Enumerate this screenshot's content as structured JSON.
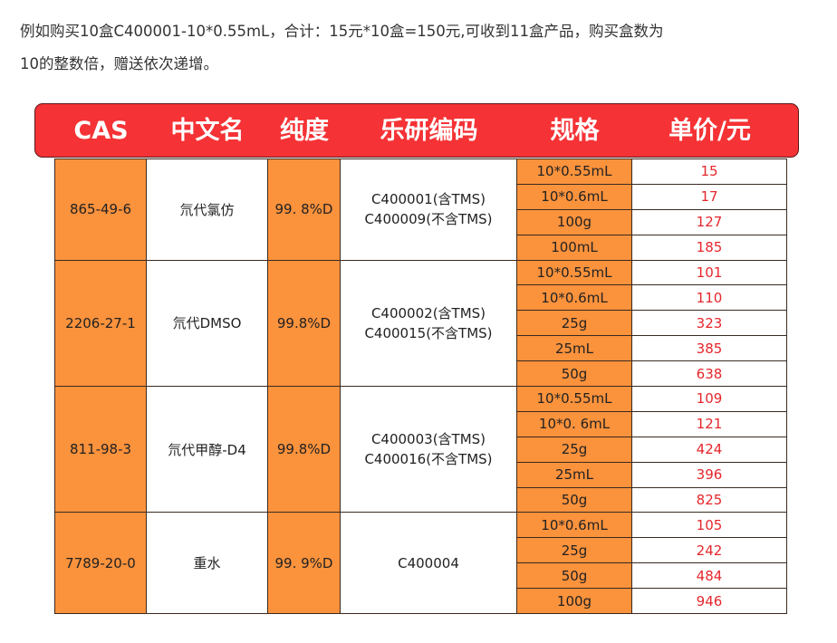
{
  "intro": {
    "line1": "例如购买10盒C400001-10*0.55mL，合计：15元*10盒=150元,可收到11盒产品，购买盒数为",
    "line2": "10的整数倍，赠送依次递增。"
  },
  "colors": {
    "header_bg": "#f53235",
    "orange": "#fb923c",
    "price": "#e5262b"
  },
  "table": {
    "headers": [
      "CAS",
      "中文名",
      "纯度",
      "乐研编码",
      "规格",
      "单价/元"
    ],
    "groups": [
      {
        "cas": "865-49-6",
        "name": "氘代氯仿",
        "purity": "99. 8%D",
        "codes": [
          "C400001(含TMS)",
          "C400009(不含TMS)"
        ],
        "items": [
          {
            "spec": "10*0.55mL",
            "price": "15"
          },
          {
            "spec": "10*0.6mL",
            "price": "17"
          },
          {
            "spec": "100g",
            "price": "127"
          },
          {
            "spec": "100mL",
            "price": "185"
          }
        ]
      },
      {
        "cas": "2206-27-1",
        "name": "氘代DMSO",
        "purity": "99.8%D",
        "codes": [
          "C400002(含TMS)",
          "C400015(不含TMS)"
        ],
        "items": [
          {
            "spec": "10*0.55mL",
            "price": "101"
          },
          {
            "spec": "10*0.6mL",
            "price": "110"
          },
          {
            "spec": "25g",
            "price": "323"
          },
          {
            "spec": "25mL",
            "price": "385"
          },
          {
            "spec": "50g",
            "price": "638"
          }
        ]
      },
      {
        "cas": "811-98-3",
        "name": "氘代甲醇-D4",
        "purity": "99.8%D",
        "codes": [
          "C400003(含TMS)",
          "C400016(不含TMS)"
        ],
        "items": [
          {
            "spec": "10*0.55mL",
            "price": "109"
          },
          {
            "spec": "10*0. 6mL",
            "price": "121"
          },
          {
            "spec": "25g",
            "price": "424"
          },
          {
            "spec": "25mL",
            "price": "396"
          },
          {
            "spec": "50g",
            "price": "825"
          }
        ]
      },
      {
        "cas": "7789-20-0",
        "name": "重水",
        "purity": "99. 9%D",
        "codes": [
          "C400004"
        ],
        "items": [
          {
            "spec": "10*0.6mL",
            "price": "105"
          },
          {
            "spec": "25g",
            "price": "242"
          },
          {
            "spec": "50g",
            "price": "484"
          },
          {
            "spec": "100g",
            "price": "946"
          }
        ]
      }
    ]
  }
}
